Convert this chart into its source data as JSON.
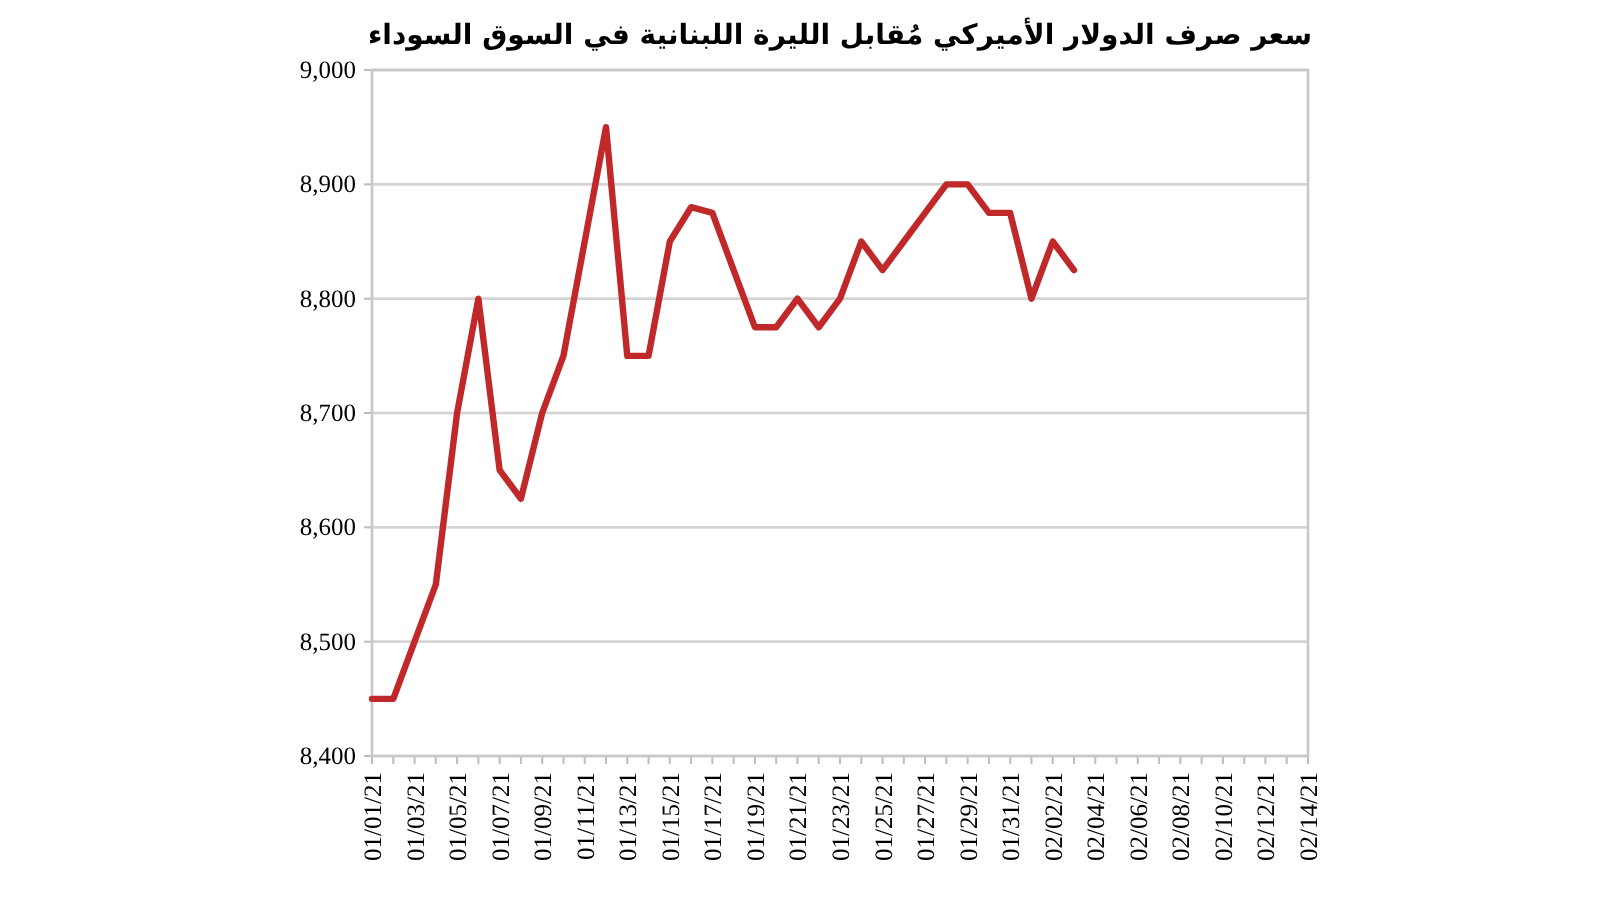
{
  "chart_data": {
    "type": "line",
    "title": "سعر صرف الدولار الأميركي مُقابل الليرة اللبنانية في السوق السوداء",
    "x": [
      "--01-01",
      "--01-02",
      "--01-03",
      "--01-04",
      "--01-05",
      "--01-06",
      "--01-07",
      "--01-08",
      "--01-09",
      "--01-10",
      "--01-11",
      "--01-12",
      "--01-13",
      "--01-14",
      "--01-15",
      "--01-16",
      "--01-17",
      "--01-18",
      "--01-19",
      "--01-20",
      "--01-21",
      "--01-22",
      "--01-23",
      "--01-24",
      "--01-25",
      "--01-26",
      "--01-27",
      "--01-28",
      "--01-29",
      "--01-30",
      "--01-31",
      "--02-01",
      "--02-02",
      "--02-03"
    ],
    "series": [
      {
        "color": "#c0282a",
        "values": [
          8450,
          8450,
          8500,
          8550,
          8700,
          8800,
          8650,
          8625,
          8700,
          8750,
          8850,
          8950,
          8750,
          8750,
          8850,
          8880,
          8875,
          8825,
          8775,
          8775,
          8800,
          8775,
          8800,
          8850,
          8825,
          8850,
          8875,
          8900,
          8900,
          8875,
          8875,
          8800,
          8850,
          8825
        ]
      }
    ],
    "xlim": [
      "--01-01",
      "--02-14"
    ],
    "xticks": [
      {
        "value": "--01-01",
        "label": "01/01/21"
      },
      {
        "value": "--01-02",
        "label": null
      },
      {
        "value": "--01-03",
        "label": "01/03/21"
      },
      {
        "value": "--01-04",
        "label": null
      },
      {
        "value": "--01-05",
        "label": "01/05/21"
      },
      {
        "value": "--01-06",
        "label": null
      },
      {
        "value": "--01-07",
        "label": "01/07/21"
      },
      {
        "value": "--01-08",
        "label": null
      },
      {
        "value": "--01-09",
        "label": "01/09/21"
      },
      {
        "value": "--01-10",
        "label": null
      },
      {
        "value": "--01-11",
        "label": "01/11/21"
      },
      {
        "value": "--01-12",
        "label": null
      },
      {
        "value": "--01-13",
        "label": "01/13/21"
      },
      {
        "value": "--01-14",
        "label": null
      },
      {
        "value": "--01-15",
        "label": "01/15/21"
      },
      {
        "value": "--01-16",
        "label": null
      },
      {
        "value": "--01-17",
        "label": "01/17/21"
      },
      {
        "value": "--01-18",
        "label": null
      },
      {
        "value": "--01-19",
        "label": "01/19/21"
      },
      {
        "value": "--01-20",
        "label": null
      },
      {
        "value": "--01-21",
        "label": "01/21/21"
      },
      {
        "value": "--01-22",
        "label": null
      },
      {
        "value": "--01-23",
        "label": "01/23/21"
      },
      {
        "value": "--01-24",
        "label": null
      },
      {
        "value": "--01-25",
        "label": "01/25/21"
      },
      {
        "value": "--01-26",
        "label": null
      },
      {
        "value": "--01-27",
        "label": "01/27/21"
      },
      {
        "value": "--01-28",
        "label": null
      },
      {
        "value": "--01-29",
        "label": "01/29/21"
      },
      {
        "value": "--01-30",
        "label": null
      },
      {
        "value": "--01-31",
        "label": "01/31/21"
      },
      {
        "value": "--02-01",
        "label": null
      },
      {
        "value": "--02-02",
        "label": "02/02/21"
      },
      {
        "value": "--02-03",
        "label": null
      },
      {
        "value": "--02-04",
        "label": "02/04/21"
      },
      {
        "value": "--02-05",
        "label": null
      },
      {
        "value": "--02-06",
        "label": "02/06/21"
      },
      {
        "value": "--02-07",
        "label": null
      },
      {
        "value": "--02-08",
        "label": "02/08/21"
      },
      {
        "value": "--02-09",
        "label": null
      },
      {
        "value": "--02-10",
        "label": "02/10/21"
      },
      {
        "value": "--02-11",
        "label": null
      },
      {
        "value": "--02-12",
        "label": "02/12/21"
      },
      {
        "value": "--02-13",
        "label": null
      },
      {
        "value": "--02-14",
        "label": "02/14/21"
      }
    ],
    "ylim": [
      8400,
      9000
    ],
    "yticks": [
      {
        "value": 8400,
        "label": "8,400"
      },
      {
        "value": 8500,
        "label": "8,500"
      },
      {
        "value": 8600,
        "label": "8,600"
      },
      {
        "value": 8700,
        "label": "8,700"
      },
      {
        "value": 8800,
        "label": "8,800"
      },
      {
        "value": 8900,
        "label": "8,900"
      },
      {
        "value": 9000,
        "label": "9,000"
      }
    ],
    "grid": "y",
    "marker": "none",
    "line_style": "solid"
  }
}
